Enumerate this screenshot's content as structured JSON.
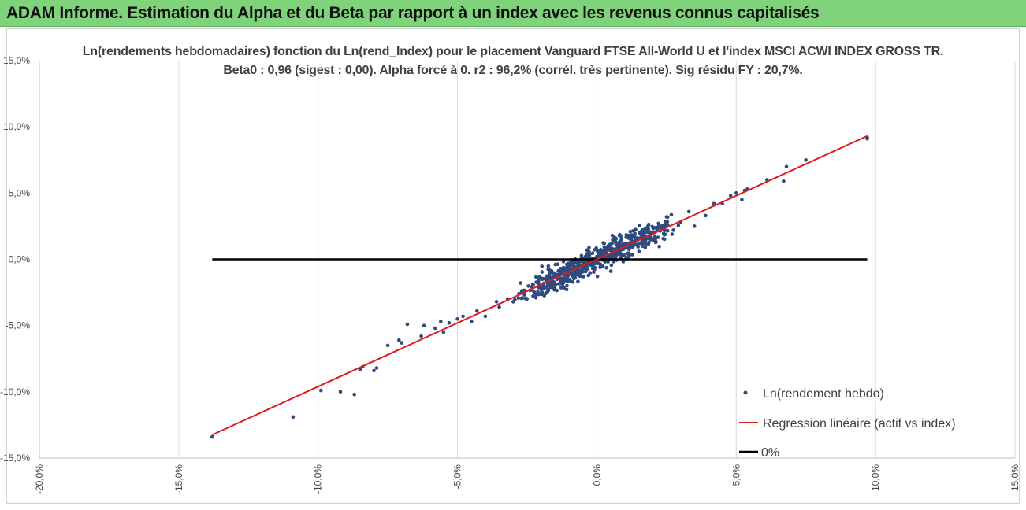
{
  "banner": {
    "title": "ADAM Informe. Estimation du Alpha et du Beta par rapport à un index avec les revenus connus capitalisés"
  },
  "colors": {
    "banner_bg": "#7fd37a",
    "points": "#2e4a7e",
    "regression": "#e01b1b",
    "zero_line": "#000000",
    "grid": "#d9d9d9"
  },
  "chart_data": {
    "type": "scatter",
    "title": "Ln(rendements hebdomadaires) fonction du Ln(rend_Index) pour le placement Vanguard FTSE All-World U et l'index MSCI  ACWI INDEX GROSS TR.",
    "subtitle": "Beta0 : 0,96  (sigest : 0,00).  Alpha forcé à 0. r2 : 96,2% (corrél. très pertinente). Sig résidu FY : 20,7%.",
    "xlim": [
      -0.2,
      0.15
    ],
    "ylim": [
      -0.15,
      0.15
    ],
    "x_ticks": [
      -0.2,
      -0.15,
      -0.1,
      -0.05,
      0,
      0.05,
      0.1,
      0.15
    ],
    "y_ticks": [
      -0.15,
      -0.1,
      -0.05,
      0,
      0.05,
      0.1,
      0.15
    ],
    "x_tick_labels": [
      "-20,0%",
      "-15,0%",
      "-10,0%",
      "-5,0%",
      "0,0%",
      "5,0%",
      "10,0%",
      "15,0%"
    ],
    "y_tick_labels": [
      "-15,0%",
      "-10,0%",
      "-5,0%",
      "0,0%",
      "5,0%",
      "10,0%",
      "15,0%"
    ],
    "grid": "vertical",
    "legend": {
      "position": "bottom-right",
      "entries": [
        "Ln(rendement hebdo)",
        "Regression linéaire (actif vs index)",
        "0%"
      ]
    },
    "regression": {
      "slope": 0.96,
      "intercept": 0,
      "x_range": [
        -0.138,
        0.097
      ]
    },
    "zero_line": {
      "y": 0,
      "x_range": [
        -0.138,
        0.097
      ]
    },
    "outlier_points": [
      [
        -0.138,
        -0.134
      ],
      [
        -0.109,
        -0.119
      ],
      [
        -0.099,
        -0.099
      ],
      [
        -0.092,
        -0.1
      ],
      [
        -0.087,
        -0.102
      ],
      [
        -0.085,
        -0.083
      ],
      [
        -0.084,
        -0.081
      ],
      [
        -0.08,
        -0.084
      ],
      [
        -0.079,
        -0.082
      ],
      [
        -0.075,
        -0.065
      ],
      [
        -0.071,
        -0.061
      ],
      [
        -0.07,
        -0.063
      ],
      [
        -0.068,
        -0.049
      ],
      [
        -0.063,
        -0.058
      ],
      [
        -0.062,
        -0.05
      ],
      [
        -0.058,
        -0.052
      ],
      [
        -0.056,
        -0.047
      ],
      [
        -0.055,
        -0.055
      ],
      [
        -0.053,
        -0.048
      ],
      [
        -0.05,
        -0.045
      ],
      [
        -0.048,
        -0.043
      ],
      [
        -0.045,
        -0.047
      ],
      [
        -0.043,
        -0.039
      ],
      [
        -0.04,
        -0.043
      ],
      [
        -0.036,
        -0.032
      ],
      [
        -0.035,
        -0.036
      ],
      [
        -0.032,
        -0.03
      ],
      [
        -0.03,
        -0.032
      ],
      [
        -0.028,
        -0.026
      ],
      [
        -0.017,
        -0.012
      ],
      [
        -0.013,
        -0.007
      ],
      [
        0.005,
        -0.009
      ],
      [
        0.012,
        0.021
      ],
      [
        0.025,
        0.032
      ],
      [
        0.027,
        0.019
      ],
      [
        0.03,
        0.028
      ],
      [
        0.033,
        0.036
      ],
      [
        0.035,
        0.025
      ],
      [
        0.039,
        0.033
      ],
      [
        0.042,
        0.042
      ],
      [
        0.045,
        0.042
      ],
      [
        0.048,
        0.048
      ],
      [
        0.05,
        0.05
      ],
      [
        0.052,
        0.045
      ],
      [
        0.053,
        0.052
      ],
      [
        0.054,
        0.053
      ],
      [
        0.061,
        0.06
      ],
      [
        0.067,
        0.059
      ],
      [
        0.068,
        0.07
      ],
      [
        0.075,
        0.075
      ],
      [
        0.097,
        0.091
      ],
      [
        0.097,
        0.092
      ]
    ],
    "cluster": {
      "count": 620,
      "x_range": [
        -0.03,
        0.03
      ],
      "slope": 0.96,
      "spread": 0.0045,
      "seed": 42
    }
  }
}
